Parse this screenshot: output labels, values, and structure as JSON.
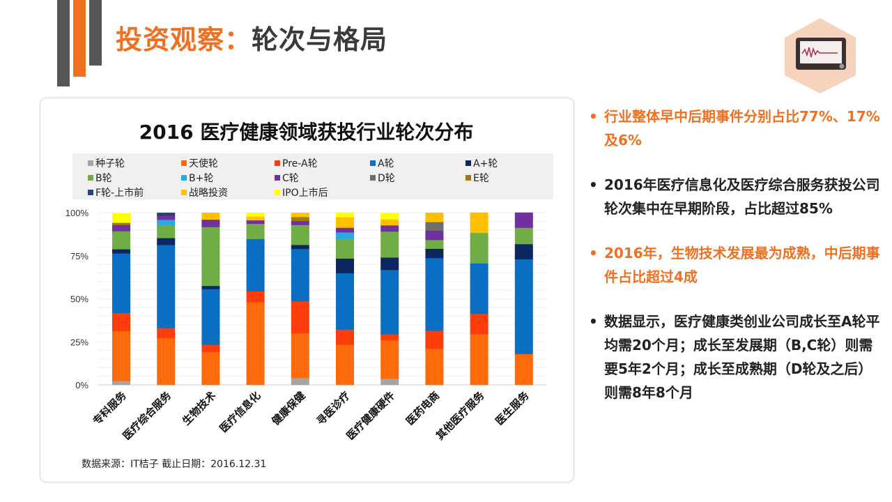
{
  "header": {
    "title_accent": "投资观察",
    "title_sep": "：",
    "title_main": "轮次与格局",
    "icon": "heart-monitor-icon",
    "accent_color": "#F07020"
  },
  "chart_data": {
    "type": "bar",
    "stacked": true,
    "title": "2016 医疗健康领域获投行业轮次分布",
    "ylim": [
      0,
      100
    ],
    "yticks": [
      "0%",
      "25%",
      "50%",
      "75%",
      "100%"
    ],
    "grid": true,
    "legend_position": "top",
    "categories": [
      "专科服务",
      "医疗综合服务",
      "生物技术",
      "医疗信息化",
      "健康保健",
      "寻医诊疗",
      "医疗健康硬件",
      "医药电商",
      "其他医疗服务",
      "医生服务"
    ],
    "series": [
      {
        "name": "种子轮",
        "color": "#A5A5A5",
        "values": [
          2.3,
          0,
          0,
          0,
          4,
          0,
          3.6,
          0,
          0,
          0
        ]
      },
      {
        "name": "天使轮",
        "color": "#FF6A0A",
        "values": [
          29,
          27.3,
          19.2,
          48,
          26,
          23.4,
          22.3,
          21,
          29.5,
          18
        ]
      },
      {
        "name": "Pre-A轮",
        "color": "#FF3D0A",
        "values": [
          10.5,
          5.8,
          4.2,
          6.4,
          18.6,
          8.8,
          3.5,
          10.5,
          11.8,
          0
        ]
      },
      {
        "name": "A轮",
        "color": "#0A6EC2",
        "values": [
          34.6,
          48.2,
          32.3,
          30.4,
          30.4,
          32.7,
          37.4,
          42.2,
          29.3,
          55
        ]
      },
      {
        "name": "A+轮",
        "color": "#0C2660",
        "values": [
          2.4,
          4,
          1.8,
          0,
          2.3,
          8.5,
          7.2,
          5.4,
          0,
          8.8
        ]
      },
      {
        "name": "B轮",
        "color": "#70AD47",
        "values": [
          10.5,
          7.6,
          34.2,
          8.8,
          11.6,
          11.4,
          15.1,
          5.1,
          17.7,
          9.5
        ]
      },
      {
        "name": "B+轮",
        "color": "#2AA8E0",
        "values": [
          0,
          3,
          0,
          0,
          0,
          3.8,
          0,
          0,
          0,
          0
        ]
      },
      {
        "name": "C轮",
        "color": "#7030A0",
        "values": [
          3.6,
          2.3,
          4.3,
          2,
          2.3,
          2.7,
          3.6,
          5.4,
          0,
          8.8
        ]
      },
      {
        "name": "D轮",
        "color": "#6E6E6E",
        "values": [
          0,
          0,
          0,
          0,
          0,
          0,
          0,
          5,
          0,
          0
        ]
      },
      {
        "name": "E轮",
        "color": "#9C7A10",
        "values": [
          1.3,
          0,
          0,
          0,
          2.3,
          0,
          0,
          0,
          0,
          0
        ]
      },
      {
        "name": "F轮-上市前",
        "color": "#264478",
        "values": [
          0,
          1.8,
          0,
          0,
          0,
          0,
          0,
          0,
          0,
          0
        ]
      },
      {
        "name": "战略投资",
        "color": "#FFC000",
        "values": [
          0,
          0,
          4,
          2.2,
          2.4,
          6.1,
          3.5,
          5.4,
          11.8,
          0
        ]
      },
      {
        "name": "IPO上市后",
        "color": "#FFFF00",
        "values": [
          5.4,
          0,
          0,
          2.2,
          0,
          2.7,
          3.6,
          0,
          0,
          0
        ]
      }
    ],
    "source": "数据来源：IT桔子  截止日期：2016.12.31"
  },
  "bullets": [
    {
      "text": "行业整体早中后期事件分别占比77%、17%及6%",
      "color": "#F07020"
    },
    {
      "text": "2016年医疗信息化及医疗综合服务获投公司轮次集中在早期阶段，占比超过85%",
      "color": "#222222"
    },
    {
      "text": "2016年，生物技术发展最为成熟，中后期事件占比超过4成",
      "color": "#F07020"
    },
    {
      "text": "数据显示，医疗健康类创业公司成长至A轮平均需20个月；成长至发展期（B,C轮）则需要5年2个月；成长至成熟期（D轮及之后）则需8年8个月",
      "color": "#222222"
    }
  ],
  "bullet_glyph": "•"
}
